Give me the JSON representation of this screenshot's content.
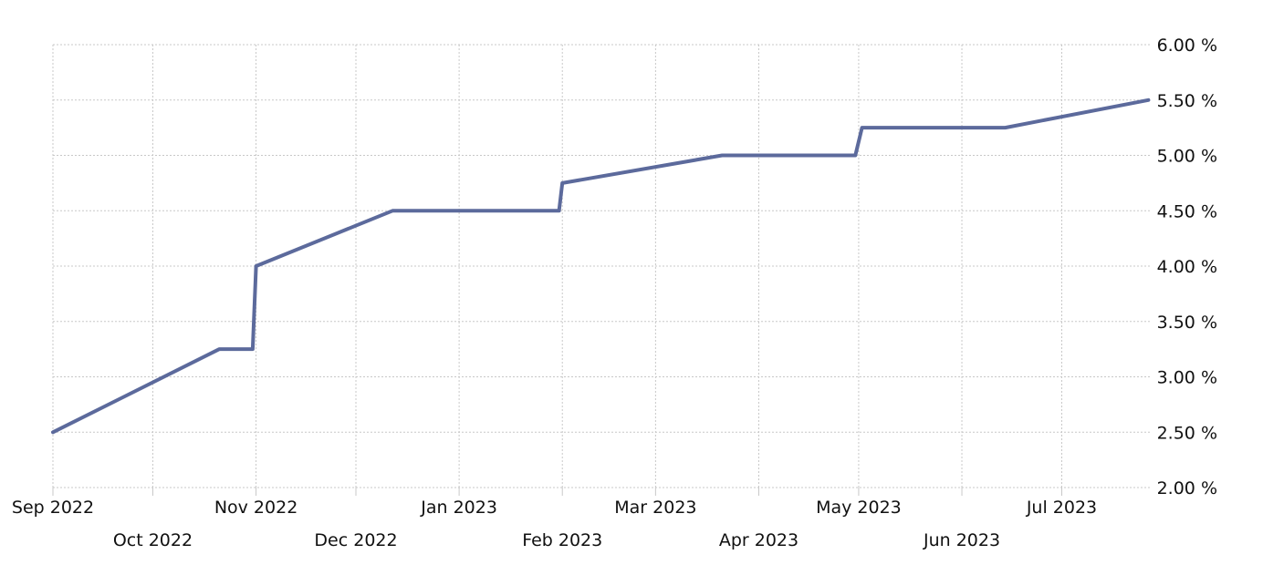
{
  "chart_data": {
    "type": "line",
    "title": "",
    "xlabel": "",
    "ylabel": "",
    "y_unit_suffix": " %",
    "ylim": [
      2.0,
      6.0
    ],
    "y_ticks": [
      2.0,
      2.5,
      3.0,
      3.5,
      4.0,
      4.5,
      5.0,
      5.5,
      6.0
    ],
    "y_tick_labels": [
      "2.00 %",
      "2.50 %",
      "3.00 %",
      "3.50 %",
      "4.00 %",
      "4.50 %",
      "5.00 %",
      "5.50 %",
      "6.00 %"
    ],
    "xlim": [
      "2022-09-01",
      "2023-07-28"
    ],
    "x_ticks": [
      {
        "date": "2022-09-01",
        "label": "Sep 2022"
      },
      {
        "date": "2022-10-01",
        "label": "Oct 2022"
      },
      {
        "date": "2022-11-01",
        "label": "Nov 2022"
      },
      {
        "date": "2022-12-01",
        "label": "Dec 2022"
      },
      {
        "date": "2023-01-01",
        "label": "Jan 2023"
      },
      {
        "date": "2023-02-01",
        "label": "Feb 2023"
      },
      {
        "date": "2023-03-01",
        "label": "Mar 2023"
      },
      {
        "date": "2023-04-01",
        "label": "Apr 2023"
      },
      {
        "date": "2023-05-01",
        "label": "May 2023"
      },
      {
        "date": "2023-06-01",
        "label": "Jun 2023"
      },
      {
        "date": "2023-07-01",
        "label": "Jul 2023"
      }
    ],
    "grid": true,
    "legend": "none",
    "y_axis_position": "right",
    "series": [
      {
        "color": "#5c6a9c",
        "x": [
          "2022-09-01",
          "2022-10-21",
          "2022-10-31",
          "2022-11-01",
          "2022-12-12",
          "2023-01-31",
          "2023-02-01",
          "2023-03-21",
          "2023-04-30",
          "2023-05-02",
          "2023-06-14",
          "2023-07-27"
        ],
        "y": [
          2.5,
          3.25,
          3.25,
          4.0,
          4.5,
          4.5,
          4.75,
          5.0,
          5.0,
          5.25,
          5.25,
          5.5
        ]
      }
    ]
  }
}
